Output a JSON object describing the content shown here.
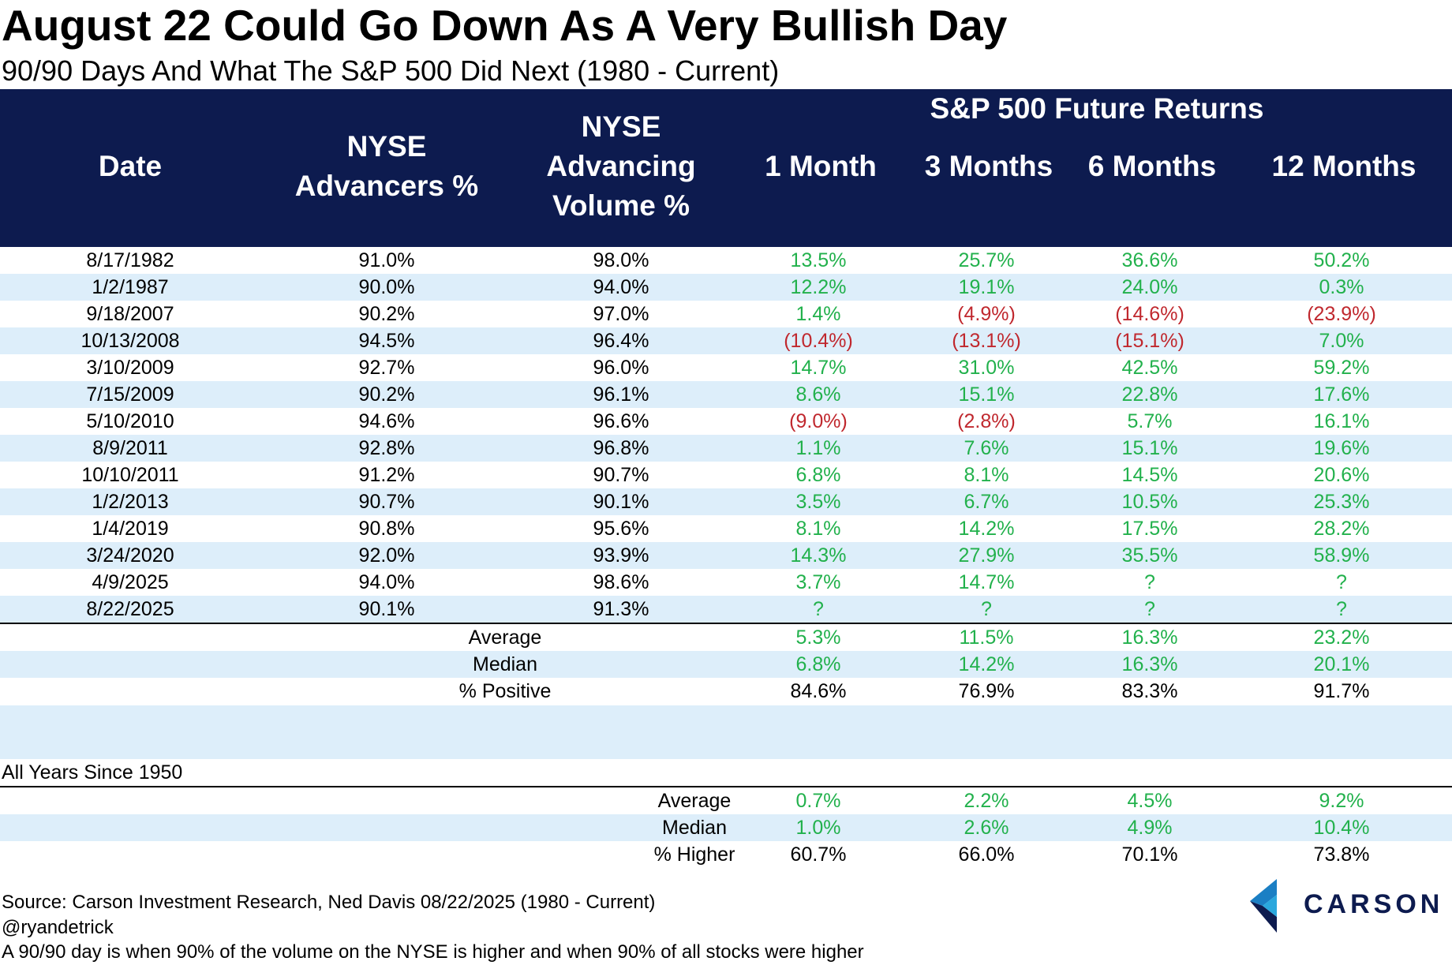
{
  "title": "August 22 Could Go Down As A Very Bullish Day",
  "subtitle": "90/90 Days And What The S&P 500 Did Next (1980 - Current)",
  "header": {
    "group_label": "S&P 500 Future Returns",
    "col_date": "Date",
    "col_adv_1": "NYSE",
    "col_adv_2": "Advancers %",
    "col_vol_1": "NYSE",
    "col_vol_2": "Advancing",
    "col_vol_3": "Volume %",
    "col_1m": "1 Month",
    "col_3m": "3 Months",
    "col_6m": "6 Months",
    "col_12m": "12 Months"
  },
  "colors": {
    "header_bg": "#0d1b4f",
    "band": "#ddeefa",
    "positive": "#22b14c",
    "negative": "#c0282e"
  },
  "chart_data": {
    "type": "table",
    "columns": [
      "Date",
      "NYSE Advancers %",
      "NYSE Advancing Volume %",
      "1 Month",
      "3 Months",
      "6 Months",
      "12 Months"
    ],
    "rows": [
      [
        "8/17/1982",
        "91.0%",
        "98.0%",
        "13.5%",
        "25.7%",
        "36.6%",
        "50.2%"
      ],
      [
        "1/2/1987",
        "90.0%",
        "94.0%",
        "12.2%",
        "19.1%",
        "24.0%",
        "0.3%"
      ],
      [
        "9/18/2007",
        "90.2%",
        "97.0%",
        "1.4%",
        "(4.9%)",
        "(14.6%)",
        "(23.9%)"
      ],
      [
        "10/13/2008",
        "94.5%",
        "96.4%",
        "(10.4%)",
        "(13.1%)",
        "(15.1%)",
        "7.0%"
      ],
      [
        "3/10/2009",
        "92.7%",
        "96.0%",
        "14.7%",
        "31.0%",
        "42.5%",
        "59.2%"
      ],
      [
        "7/15/2009",
        "90.2%",
        "96.1%",
        "8.6%",
        "15.1%",
        "22.8%",
        "17.6%"
      ],
      [
        "5/10/2010",
        "94.6%",
        "96.6%",
        "(9.0%)",
        "(2.8%)",
        "5.7%",
        "16.1%"
      ],
      [
        "8/9/2011",
        "92.8%",
        "96.8%",
        "1.1%",
        "7.6%",
        "15.1%",
        "19.6%"
      ],
      [
        "10/10/2011",
        "91.2%",
        "90.7%",
        "6.8%",
        "8.1%",
        "14.5%",
        "20.6%"
      ],
      [
        "1/2/2013",
        "90.7%",
        "90.1%",
        "3.5%",
        "6.7%",
        "10.5%",
        "25.3%"
      ],
      [
        "1/4/2019",
        "90.8%",
        "95.6%",
        "8.1%",
        "14.2%",
        "17.5%",
        "28.2%"
      ],
      [
        "3/24/2020",
        "92.0%",
        "93.9%",
        "14.3%",
        "27.9%",
        "35.5%",
        "58.9%"
      ],
      [
        "4/9/2025",
        "94.0%",
        "98.6%",
        "3.7%",
        "14.7%",
        "?",
        "?"
      ],
      [
        "8/22/2025",
        "90.1%",
        "91.3%",
        "?",
        "?",
        "?",
        "?"
      ]
    ],
    "summary": [
      {
        "label": "Average",
        "values": [
          "5.3%",
          "11.5%",
          "16.3%",
          "23.2%"
        ]
      },
      {
        "label": "Median",
        "values": [
          "6.8%",
          "14.2%",
          "16.3%",
          "20.1%"
        ]
      },
      {
        "label": "% Positive",
        "values": [
          "84.6%",
          "76.9%",
          "83.3%",
          "91.7%"
        ]
      }
    ],
    "all_years_label": "All Years Since 1950",
    "all_years": [
      {
        "label": "Average",
        "values": [
          "0.7%",
          "2.2%",
          "4.5%",
          "9.2%"
        ]
      },
      {
        "label": "Median",
        "values": [
          "1.0%",
          "2.6%",
          "4.9%",
          "10.4%"
        ]
      },
      {
        "label": "% Higher",
        "values": [
          "60.7%",
          "66.0%",
          "70.1%",
          "73.8%"
        ]
      }
    ]
  },
  "footer": {
    "source": "Source: Carson Investment Research, Ned Davis 08/22/2025 (1980 - Current)",
    "handle": "@ryandetrick",
    "note": "A 90/90 day is when 90% of the volume on the NYSE is higher and when 90% of all stocks were higher"
  },
  "logo": {
    "text": "CARSON"
  }
}
